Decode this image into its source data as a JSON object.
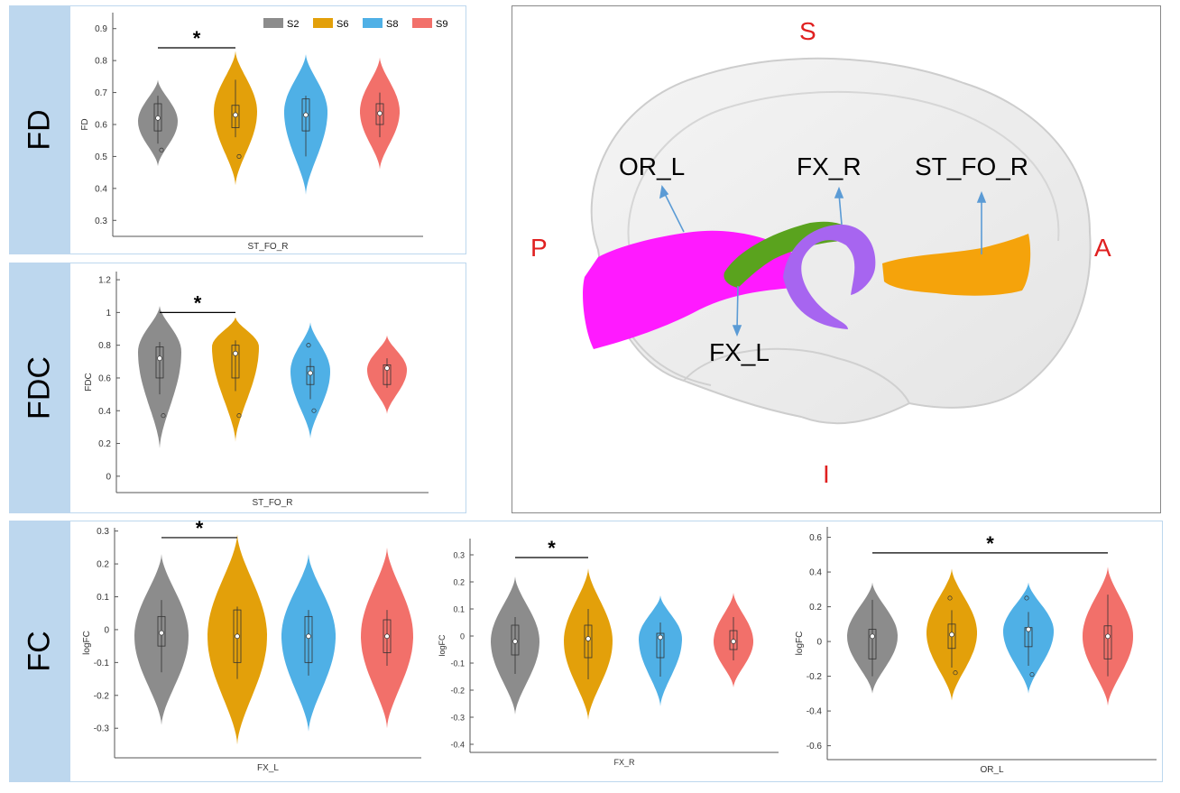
{
  "panel_labels": {
    "fd": "FD",
    "fdc": "FDC",
    "fc": "FC"
  },
  "brain": {
    "directions": {
      "superior": "S",
      "inferior": "I",
      "posterior": "P",
      "anterior": "A"
    },
    "tracts": {
      "or_l": "OR_L",
      "fx_r": "FX_R",
      "fx_l": "FX_L",
      "st_fo_r": "ST_FO_R"
    },
    "colors": {
      "or_l": "#ff1aff",
      "fx_l": "#5aa31e",
      "fx_r": "#a765f0",
      "st_fo_r": "#f5a30b"
    }
  },
  "legend": [
    "S2",
    "S6",
    "S8",
    "S9"
  ],
  "colors": {
    "S2": "#8c8c8c",
    "S6": "#e3a00a",
    "S8": "#4fb0e6",
    "S9": "#f2706a"
  },
  "chart_data": [
    {
      "id": "fd",
      "type": "violin",
      "xlabel": "ST_FO_R",
      "ylabel": "FD",
      "ylim": [
        0.25,
        0.95
      ],
      "yticks": [
        0.3,
        0.4,
        0.5,
        0.6,
        0.7,
        0.8,
        0.9
      ],
      "ytick_labels": [
        "0.3",
        "0.4",
        "0.5",
        "0.6",
        "0.7",
        "0.8",
        "0.9"
      ],
      "legend": true,
      "significance": [
        {
          "from": 0,
          "to": 1,
          "y": 0.84,
          "label": "*"
        }
      ],
      "series": [
        {
          "name": "S2",
          "min": 0.47,
          "max": 0.74,
          "q1": 0.58,
          "median": 0.62,
          "q3": 0.665,
          "whisker_low": 0.54,
          "whisker_high": 0.69,
          "outliers": [
            0.52
          ],
          "mode": 0.61
        },
        {
          "name": "S6",
          "min": 0.41,
          "max": 0.83,
          "q1": 0.59,
          "median": 0.63,
          "q3": 0.66,
          "whisker_low": 0.56,
          "whisker_high": 0.74,
          "outliers": [
            0.5
          ],
          "mode": 0.64
        },
        {
          "name": "S8",
          "min": 0.38,
          "max": 0.82,
          "q1": 0.58,
          "median": 0.63,
          "q3": 0.68,
          "whisker_low": 0.5,
          "whisker_high": 0.69,
          "outliers": [],
          "mode": 0.64
        },
        {
          "name": "S9",
          "min": 0.46,
          "max": 0.81,
          "q1": 0.6,
          "median": 0.635,
          "q3": 0.665,
          "whisker_low": 0.56,
          "whisker_high": 0.7,
          "outliers": [],
          "mode": 0.64
        }
      ]
    },
    {
      "id": "fdc",
      "type": "violin",
      "xlabel": "ST_FO_R",
      "ylabel": "FDC",
      "ylim": [
        -0.1,
        1.25
      ],
      "yticks": [
        0,
        0.2,
        0.4,
        0.6,
        0.8,
        1,
        1.2
      ],
      "ytick_labels": [
        "0",
        "0.2",
        "0.4",
        "0.6",
        "0.8",
        "1",
        "1.2"
      ],
      "legend": false,
      "significance": [
        {
          "from": 0,
          "to": 1,
          "y": 1.0,
          "label": "*"
        }
      ],
      "series": [
        {
          "name": "S2",
          "min": 0.17,
          "max": 1.04,
          "q1": 0.6,
          "median": 0.72,
          "q3": 0.79,
          "whisker_low": 0.5,
          "whisker_high": 0.82,
          "outliers": [
            0.37
          ],
          "mode": 0.76
        },
        {
          "name": "S6",
          "min": 0.21,
          "max": 0.97,
          "q1": 0.6,
          "median": 0.75,
          "q3": 0.8,
          "whisker_low": 0.52,
          "whisker_high": 0.83,
          "outliers": [
            0.37
          ],
          "mode": 0.79
        },
        {
          "name": "S8",
          "min": 0.23,
          "max": 0.94,
          "q1": 0.56,
          "median": 0.63,
          "q3": 0.67,
          "whisker_low": 0.47,
          "whisker_high": 0.72,
          "outliers": [
            0.4,
            0.8
          ],
          "mode": 0.64
        },
        {
          "name": "S9",
          "min": 0.38,
          "max": 0.86,
          "q1": 0.56,
          "median": 0.66,
          "q3": 0.68,
          "whisker_low": 0.54,
          "whisker_high": 0.72,
          "outliers": [],
          "mode": 0.65
        }
      ]
    },
    {
      "id": "fc_fxl",
      "type": "violin",
      "xlabel": "FX_L",
      "ylabel": "logFC",
      "ylim": [
        -0.39,
        0.31
      ],
      "yticks": [
        -0.3,
        -0.2,
        -0.1,
        0,
        0.1,
        0.2,
        0.3
      ],
      "ytick_labels": [
        "-0.3",
        "-0.2",
        "-0.1",
        "0",
        "0.1",
        "0.2",
        "0.3"
      ],
      "legend": false,
      "significance": [
        {
          "from": 0,
          "to": 1,
          "y": 0.28,
          "label": "*"
        }
      ],
      "series": [
        {
          "name": "S2",
          "min": -0.29,
          "max": 0.23,
          "q1": -0.05,
          "median": -0.01,
          "q3": 0.04,
          "whisker_low": -0.13,
          "whisker_high": 0.09,
          "outliers": [],
          "mode": -0.02
        },
        {
          "name": "S6",
          "min": -0.35,
          "max": 0.29,
          "q1": -0.1,
          "median": -0.02,
          "q3": 0.06,
          "whisker_low": -0.15,
          "whisker_high": 0.07,
          "outliers": [],
          "mode": -0.02
        },
        {
          "name": "S8",
          "min": -0.31,
          "max": 0.23,
          "q1": -0.1,
          "median": -0.02,
          "q3": 0.04,
          "whisker_low": -0.14,
          "whisker_high": 0.06,
          "outliers": [],
          "mode": -0.02
        },
        {
          "name": "S9",
          "min": -0.3,
          "max": 0.25,
          "q1": -0.07,
          "median": -0.02,
          "q3": 0.03,
          "whisker_low": -0.11,
          "whisker_high": 0.06,
          "outliers": [],
          "mode": -0.02
        }
      ]
    },
    {
      "id": "fc_fxr",
      "type": "violin",
      "xlabel": "FX_R",
      "ylabel": "logFC",
      "ylim": [
        -0.43,
        0.36
      ],
      "yticks": [
        -0.4,
        -0.3,
        -0.2,
        -0.1,
        0,
        0.1,
        0.2,
        0.3
      ],
      "ytick_labels": [
        "-0.4",
        "-0.3",
        "-0.2",
        "-0.1",
        "0",
        "0.1",
        "0.2",
        "0.3"
      ],
      "legend": false,
      "significance": [
        {
          "from": 0,
          "to": 1,
          "y": 0.29,
          "label": "*"
        }
      ],
      "series": [
        {
          "name": "S2",
          "min": -0.29,
          "max": 0.22,
          "q1": -0.07,
          "median": -0.02,
          "q3": 0.04,
          "whisker_low": -0.14,
          "whisker_high": 0.07,
          "outliers": [],
          "mode": -0.02
        },
        {
          "name": "S6",
          "min": -0.31,
          "max": 0.25,
          "q1": -0.08,
          "median": -0.01,
          "q3": 0.04,
          "whisker_low": -0.16,
          "whisker_high": 0.1,
          "outliers": [],
          "mode": -0.02
        },
        {
          "name": "S8",
          "min": -0.26,
          "max": 0.15,
          "q1": -0.08,
          "median": -0.005,
          "q3": 0.01,
          "whisker_low": -0.15,
          "whisker_high": 0.05,
          "outliers": [],
          "mode": -0.01
        },
        {
          "name": "S9",
          "min": -0.19,
          "max": 0.16,
          "q1": -0.05,
          "median": -0.02,
          "q3": 0.02,
          "whisker_low": -0.09,
          "whisker_high": 0.07,
          "outliers": [],
          "mode": -0.02
        }
      ]
    },
    {
      "id": "fc_orl",
      "type": "violin",
      "xlabel": "OR_L",
      "ylabel": "logFC",
      "ylim": [
        -0.68,
        0.66
      ],
      "yticks": [
        -0.6,
        -0.4,
        -0.2,
        0,
        0.2,
        0.4,
        0.6
      ],
      "ytick_labels": [
        "-0.6",
        "-0.4",
        "-0.2",
        "0",
        "0.2",
        "0.4",
        "0.6"
      ],
      "legend": false,
      "significance": [
        {
          "from": 0,
          "to": 3,
          "y": 0.51,
          "label": "*"
        }
      ],
      "series": [
        {
          "name": "S2",
          "min": -0.3,
          "max": 0.34,
          "q1": -0.1,
          "median": 0.03,
          "q3": 0.07,
          "whisker_low": -0.2,
          "whisker_high": 0.24,
          "outliers": [],
          "mode": 0.03
        },
        {
          "name": "S6",
          "min": -0.34,
          "max": 0.42,
          "q1": -0.04,
          "median": 0.04,
          "q3": 0.1,
          "whisker_low": -0.15,
          "whisker_high": 0.18,
          "outliers": [
            0.25,
            -0.18
          ],
          "mode": 0.05
        },
        {
          "name": "S8",
          "min": -0.3,
          "max": 0.34,
          "q1": -0.03,
          "median": 0.07,
          "q3": 0.08,
          "whisker_low": -0.14,
          "whisker_high": 0.17,
          "outliers": [
            0.25,
            -0.19
          ],
          "mode": 0.06
        },
        {
          "name": "S9",
          "min": -0.37,
          "max": 0.43,
          "q1": -0.1,
          "median": 0.03,
          "q3": 0.09,
          "whisker_low": -0.2,
          "whisker_high": 0.27,
          "outliers": [],
          "mode": 0.03
        }
      ]
    }
  ]
}
